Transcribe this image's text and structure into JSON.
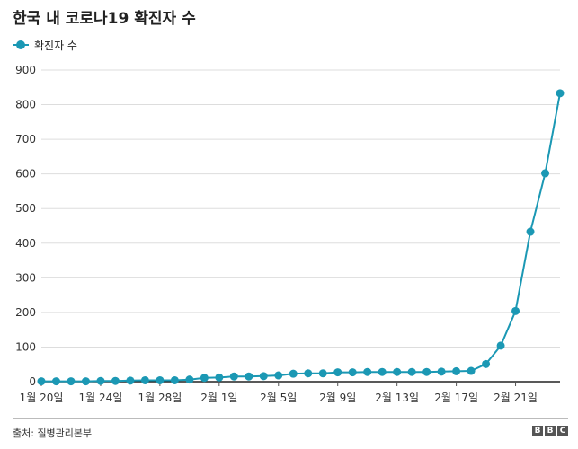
{
  "title": "한국 내 코로나19 확진자 수",
  "source": "출처: 질병관리본부",
  "logo": [
    "B",
    "B",
    "C"
  ],
  "colors": {
    "series": "#1b98b4",
    "grid": "#dddddd",
    "axis": "#222222"
  },
  "chart_data": {
    "type": "line",
    "title": "한국 내 코로나19 확진자 수",
    "xlabel": "",
    "ylabel": "",
    "ylim": [
      0,
      900
    ],
    "yticks": [
      0,
      100,
      200,
      300,
      400,
      500,
      600,
      700,
      800,
      900
    ],
    "grid": true,
    "legend": "top-left",
    "x": [
      "1월 20일",
      "1월 21일",
      "1월 22일",
      "1월 23일",
      "1월 24일",
      "1월 25일",
      "1월 26일",
      "1월 27일",
      "1월 28일",
      "1월 29일",
      "1월 30일",
      "1월 31일",
      "2월 1일",
      "2월 2일",
      "2월 3일",
      "2월 4일",
      "2월 5일",
      "2월 6일",
      "2월 7일",
      "2월 8일",
      "2월 9일",
      "2월 10일",
      "2월 11일",
      "2월 12일",
      "2월 13일",
      "2월 14일",
      "2월 15일",
      "2월 16일",
      "2월 17일",
      "2월 18일",
      "2월 19일",
      "2월 20일",
      "2월 21일",
      "2월 22일",
      "2월 23일",
      "2월 24일"
    ],
    "xticks": [
      "1월 20일",
      "1월 24일",
      "1월 28일",
      "2월 1일",
      "2월 5일",
      "2월 9일",
      "2월 13일",
      "2월 17일",
      "2월 21일"
    ],
    "series": [
      {
        "name": "확진자 수",
        "values": [
          1,
          1,
          1,
          1,
          2,
          2,
          3,
          4,
          4,
          4,
          6,
          11,
          12,
          15,
          15,
          16,
          18,
          23,
          24,
          24,
          27,
          27,
          28,
          28,
          28,
          28,
          28,
          29,
          30,
          31,
          51,
          104,
          204,
          433,
          602,
          833
        ]
      }
    ]
  }
}
